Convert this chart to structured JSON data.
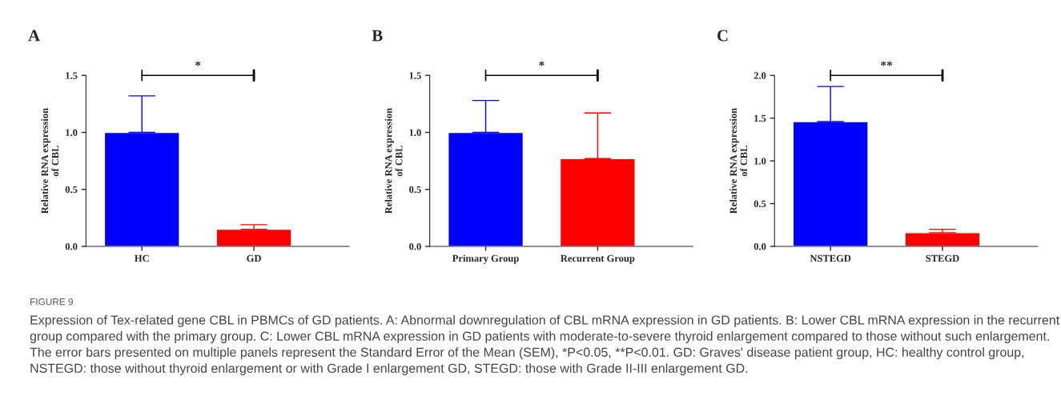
{
  "chart_data": [
    {
      "type": "bar",
      "title": "A",
      "ylabel": "Relative RNA expression\nof CBL",
      "categories": [
        "HC",
        "GD"
      ],
      "colors": [
        "#0000ff",
        "#ff0000"
      ],
      "values": [
        1.0,
        0.15
      ],
      "errors": [
        [
          1.0,
          1.32
        ],
        [
          0.15,
          0.19
        ]
      ],
      "ylim": [
        0,
        1.5
      ],
      "yticks": [
        {
          "value": 0,
          "label": "0.0"
        },
        {
          "value": 0.5,
          "label": "0.5"
        },
        {
          "value": 1,
          "label": "1.0"
        },
        {
          "value": 1.5,
          "label": "1.5"
        }
      ],
      "grid": false,
      "annotations": [
        "*",
        "FIGURE 9",
        "Expression of Tex-related gene CBL in PBMCs of GD patients. A: Abnormal downregulation of CBL mRNA expression in GD patients. B: Lower CBL mRNA expression in the recurrent group compared with the primary group. C: Lower CBL mRNA expression in GD patients with moderate-to-severe thyroid enlargement compared to those without such enlargement. The error bars presented on multiple panels represent the Standard Error of the Mean (SEM), *P<0.05, **P<0.01. GD: Graves' disease patient group, HC: healthy control group, NSTEGD: those without thyroid enlargement or with Grade I enlargement GD, STEGD: those with Grade II-III enlargement GD."
      ]
    },
    {
      "type": "bar",
      "title": "B",
      "ylabel": "Relative RNA expression\nof CBL",
      "categories": [
        "Primary Group",
        "Recurrent Group"
      ],
      "colors": [
        "#0000ff",
        "#ff0000"
      ],
      "values": [
        1.0,
        0.77
      ],
      "errors": [
        [
          1.0,
          1.28
        ],
        [
          0.77,
          1.17
        ]
      ],
      "ylim": [
        0,
        1.5
      ],
      "yticks": [
        {
          "value": 0,
          "label": "0.0"
        },
        {
          "value": 0.5,
          "label": "0.5"
        },
        {
          "value": 1,
          "label": "1.0"
        },
        {
          "value": 1.5,
          "label": "1.5"
        }
      ],
      "grid": false,
      "annotations": [
        "*"
      ]
    },
    {
      "type": "bar",
      "title": "C",
      "ylabel": "Relative RNA expression\nof CBL",
      "categories": [
        "NSTEGD",
        "STEGD"
      ],
      "colors": [
        "#0000ff",
        "#ff0000"
      ],
      "values": [
        1.46,
        0.16
      ],
      "errors": [
        [
          1.46,
          1.87
        ],
        [
          0.16,
          0.2
        ]
      ],
      "ylim": [
        0,
        2.0
      ],
      "yticks": [
        {
          "value": 0,
          "label": "0.0"
        },
        {
          "value": 0.5,
          "label": "0.5"
        },
        {
          "value": 1,
          "label": "1.0"
        },
        {
          "value": 1.5,
          "label": "1.5"
        },
        {
          "value": 2,
          "label": "2.0"
        }
      ],
      "grid": false,
      "annotations": [
        "**"
      ]
    }
  ]
}
